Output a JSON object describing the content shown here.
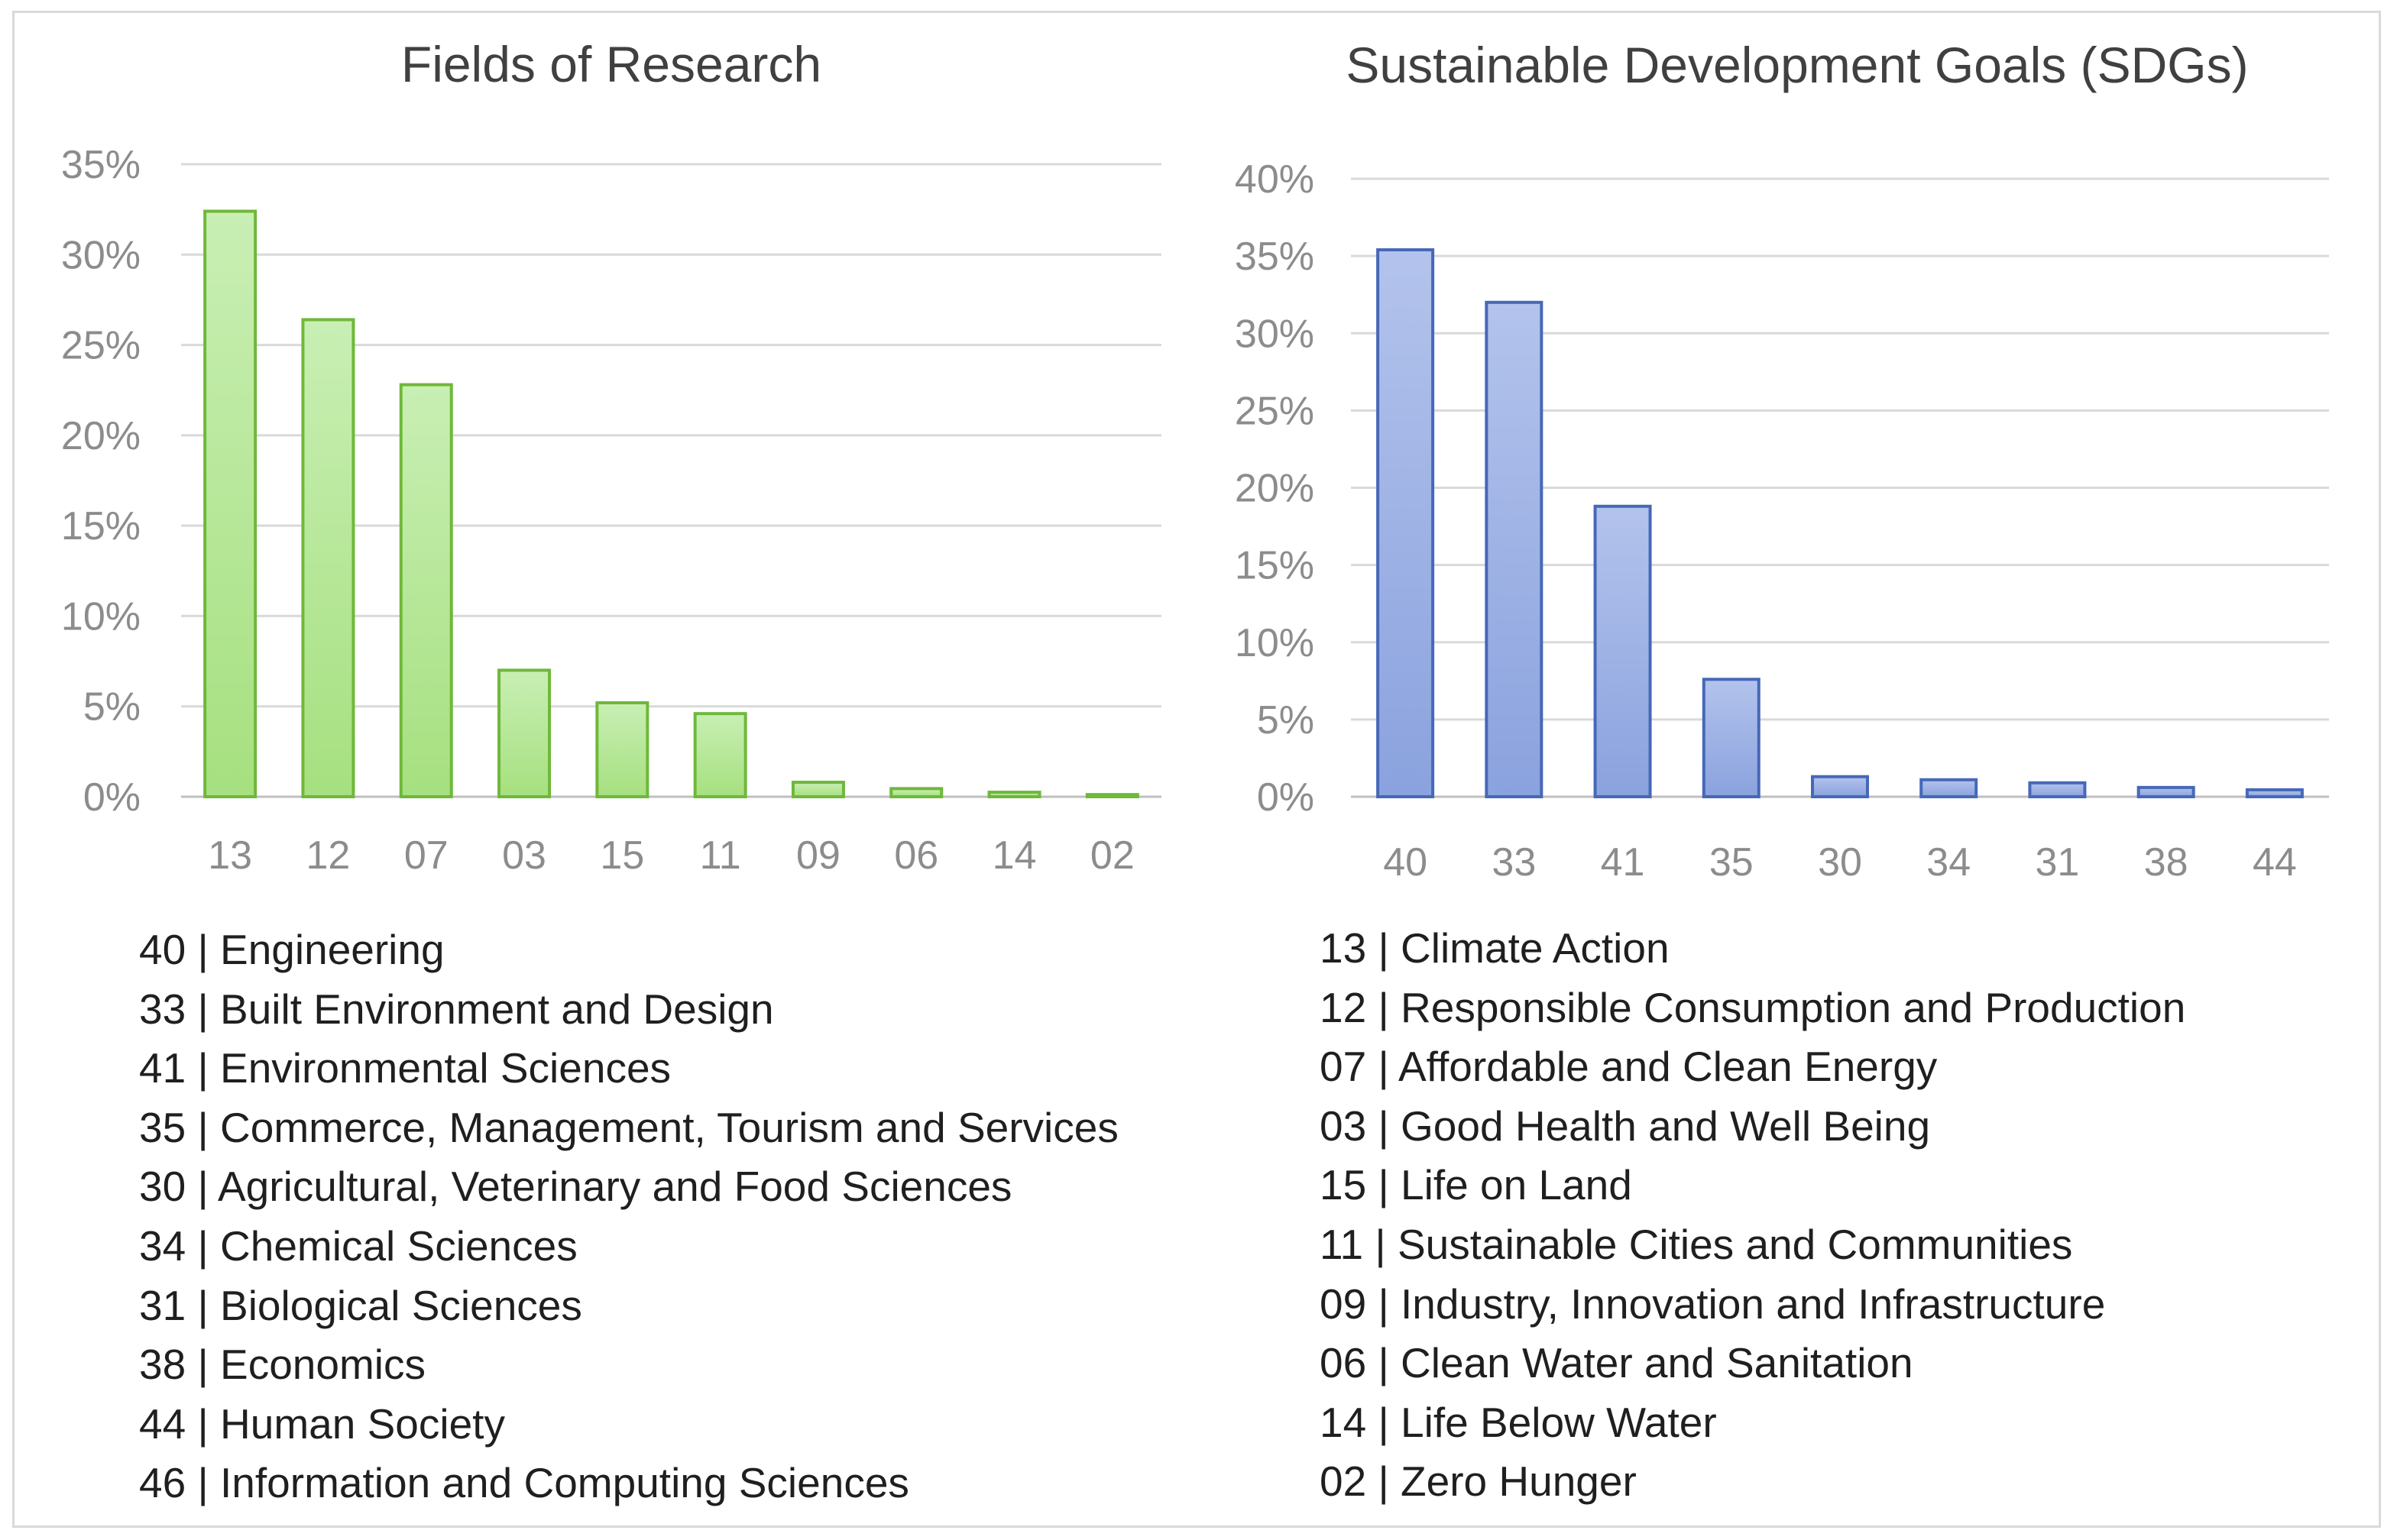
{
  "colors": {
    "grid": "#d9d9d9",
    "axis": "#bfbfbf",
    "green_fill_top": "#c8efb4",
    "green_fill_bottom": "#a6e07f",
    "green_stroke": "#6fb83a",
    "blue_fill_top": "#b3c3ec",
    "blue_fill_bottom": "#8aa2de",
    "blue_stroke": "#4668b8"
  },
  "chart_data": [
    {
      "type": "bar",
      "title": "Fields of Research",
      "categories": [
        "13",
        "12",
        "07",
        "03",
        "15",
        "11",
        "09",
        "06",
        "14",
        "02"
      ],
      "values": [
        32.4,
        26.4,
        22.8,
        7.0,
        5.2,
        4.6,
        0.8,
        0.45,
        0.25,
        0.12
      ],
      "ylim": [
        0,
        35
      ],
      "yticks": [
        0,
        5,
        10,
        15,
        20,
        25,
        30,
        35
      ],
      "ytick_labels": [
        "0%",
        "5%",
        "10%",
        "15%",
        "20%",
        "25%",
        "30%",
        "35%"
      ],
      "xlabel": "",
      "ylabel": "",
      "grid": true
    },
    {
      "type": "bar",
      "title": "Sustainable Development Goals (SDGs)",
      "categories": [
        "40",
        "33",
        "41",
        "35",
        "30",
        "34",
        "31",
        "38",
        "44"
      ],
      "values": [
        35.4,
        32.0,
        18.8,
        7.6,
        1.3,
        1.1,
        0.9,
        0.6,
        0.45
      ],
      "ylim": [
        0,
        40
      ],
      "yticks": [
        0,
        5,
        10,
        15,
        20,
        25,
        30,
        35,
        40
      ],
      "ytick_labels": [
        "0%",
        "5%",
        "10%",
        "15%",
        "20%",
        "25%",
        "30%",
        "35%",
        "40%"
      ],
      "xlabel": "",
      "ylabel": "",
      "grid": true
    }
  ],
  "legend_left": [
    "40 | Engineering",
    "33 | Built Environment and Design",
    "41 | Environmental Sciences",
    "35 | Commerce, Management, Tourism and Services",
    "30 | Agricultural, Veterinary and Food Sciences",
    "34 | Chemical Sciences",
    "31 | Biological Sciences",
    "38 | Economics",
    "44 | Human Society",
    "46 | Information and Computing Sciences"
  ],
  "legend_right": [
    "13 | Climate Action",
    "12 | Responsible Consumption and Production",
    "07 | Affordable and Clean Energy",
    "03 | Good Health and Well Being",
    "15 | Life on Land",
    "11 | Sustainable Cities and Communities",
    "09 | Industry, Innovation and Infrastructure",
    "06 | Clean Water and Sanitation",
    "14 | Life Below Water",
    "02 | Zero Hunger"
  ]
}
